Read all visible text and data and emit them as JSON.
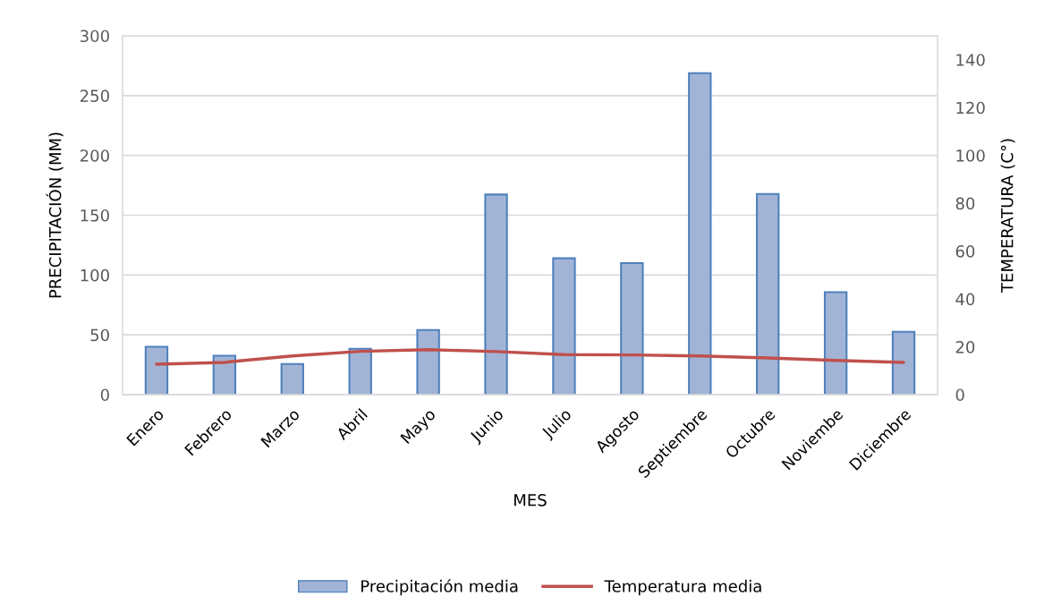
{
  "chart_data": {
    "type": "bar",
    "categories": [
      "Enero",
      "Febrero",
      "Marzo",
      "Abril",
      "Mayo",
      "Junio",
      "Julio",
      "Agosto",
      "Septiembre",
      "Octubre",
      "Noviembe",
      "Diciembre"
    ],
    "series": [
      {
        "name": "Precipitación media",
        "color": "#a2b4d6",
        "values": [
          40,
          32.6,
          25.6,
          38.4,
          54,
          167.3,
          114,
          110,
          268.8,
          167.8,
          85.7,
          52.6
        ]
      },
      {
        "name": "Temperatura media",
        "type": "line",
        "axis": "y2",
        "color": "#c0504d",
        "values": [
          12.7,
          13.5,
          16.2,
          18.1,
          18.8,
          18,
          16.7,
          16.6,
          16.2,
          15.3,
          14.3,
          13.5
        ]
      }
    ],
    "xlabel": "MES",
    "ylabel": "PRECIPITACIÓN (MM)",
    "y2label": "TEMPERATURA (C°)",
    "ylim": [
      0,
      300
    ],
    "yticks": [
      0,
      50,
      100,
      150,
      200,
      250,
      300
    ],
    "y2lim": [
      0,
      150
    ],
    "y2ticks": [
      0,
      20,
      40,
      60,
      80,
      100,
      120,
      140
    ],
    "grid": "y",
    "legend": "bottom",
    "marker": "none",
    "line_style": "solid"
  }
}
